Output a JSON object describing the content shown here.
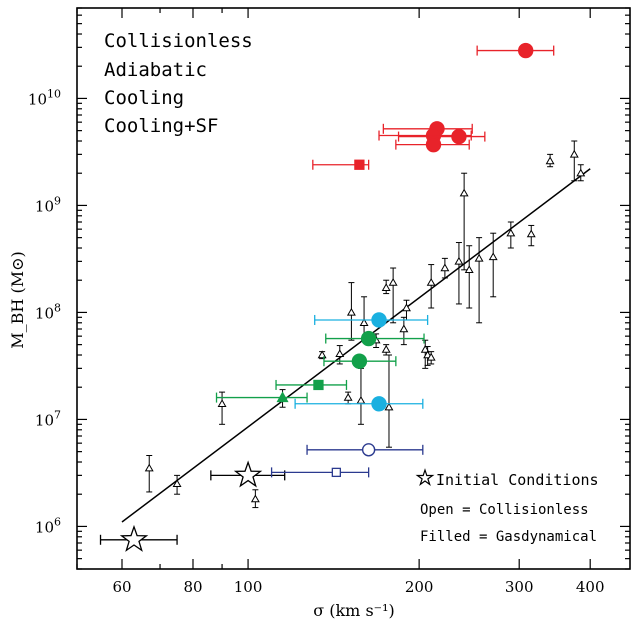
{
  "chart_data": {
    "type": "scatter",
    "xlabel": "σ (km s⁻¹)",
    "ylabel": "M_BH (M⊙)",
    "xscale": "log",
    "yscale": "log",
    "xlim": [
      50,
      470
    ],
    "ylim": [
      400000,
      70000000000
    ],
    "x_ticks": [
      {
        "v": 60,
        "label": "60"
      },
      {
        "v": 80,
        "label": "80"
      },
      {
        "v": 100,
        "label": "100"
      },
      {
        "v": 200,
        "label": "200"
      },
      {
        "v": 300,
        "label": "300"
      },
      {
        "v": 400,
        "label": "400"
      }
    ],
    "y_ticks": [
      {
        "v": 1000000,
        "base": "10",
        "exp": "6"
      },
      {
        "v": 10000000,
        "base": "10",
        "exp": "7"
      },
      {
        "v": 100000000,
        "base": "10",
        "exp": "8"
      },
      {
        "v": 1000000000,
        "base": "10",
        "exp": "9"
      },
      {
        "v": 10000000000,
        "base": "10",
        "exp": "10"
      }
    ],
    "legend": {
      "placement": "top-left",
      "entries": [
        {
          "label": "Collisionless",
          "color": "#2b3a8f"
        },
        {
          "label": "Adiabatic",
          "color": "#1ab0e0"
        },
        {
          "label": "Cooling",
          "color": "#e8232a"
        },
        {
          "label": "Cooling+SF",
          "color": "#12a04a"
        }
      ]
    },
    "annotations": {
      "initial": "Initial Conditions",
      "open": "Open = Collisionless",
      "filled": "Filled = Gasdynamical"
    },
    "fit_line": {
      "x": [
        60,
        400
      ],
      "y": [
        1100000,
        2200000000
      ]
    },
    "observed": [
      {
        "x": 67,
        "y": 3500000,
        "ylo": 2100000,
        "yhi": 4600000
      },
      {
        "x": 75,
        "y": 2500000,
        "ylo": 2000000,
        "yhi": 3000000
      },
      {
        "x": 90,
        "y": 14000000,
        "ylo": 9000000,
        "yhi": 18000000
      },
      {
        "x": 103,
        "y": 1800000,
        "ylo": 1500000,
        "yhi": 2200000
      },
      {
        "x": 115,
        "y": 16000000,
        "ylo": 13000000,
        "yhi": 19000000
      },
      {
        "x": 135,
        "y": 40000000,
        "ylo": 37000000,
        "yhi": 43000000
      },
      {
        "x": 145,
        "y": 41000000,
        "ylo": 33000000,
        "yhi": 49000000
      },
      {
        "x": 150,
        "y": 16000000,
        "ylo": 14000000,
        "yhi": 18000000
      },
      {
        "x": 152,
        "y": 100000000,
        "ylo": 55000000,
        "yhi": 190000000
      },
      {
        "x": 158,
        "y": 15000000,
        "ylo": 9000000,
        "yhi": 30000000
      },
      {
        "x": 160,
        "y": 80000000,
        "ylo": 55000000,
        "yhi": 140000000
      },
      {
        "x": 168,
        "y": 55000000,
        "ylo": 47000000,
        "yhi": 63000000
      },
      {
        "x": 175,
        "y": 45000000,
        "ylo": 40000000,
        "yhi": 50000000
      },
      {
        "x": 175,
        "y": 170000000,
        "ylo": 150000000,
        "yhi": 200000000
      },
      {
        "x": 177,
        "y": 13000000,
        "ylo": 5500000,
        "yhi": 40000000
      },
      {
        "x": 180,
        "y": 190000000,
        "ylo": 80000000,
        "yhi": 260000000
      },
      {
        "x": 188,
        "y": 70000000,
        "ylo": 50000000,
        "yhi": 90000000
      },
      {
        "x": 190,
        "y": 110000000,
        "ylo": 85000000,
        "yhi": 130000000
      },
      {
        "x": 205,
        "y": 45000000,
        "ylo": 30000000,
        "yhi": 55000000
      },
      {
        "x": 207,
        "y": 40000000,
        "ylo": 32000000,
        "yhi": 48000000
      },
      {
        "x": 210,
        "y": 190000000,
        "ylo": 110000000,
        "yhi": 280000000
      },
      {
        "x": 210,
        "y": 38000000,
        "ylo": 33000000,
        "yhi": 43000000
      },
      {
        "x": 222,
        "y": 260000000,
        "ylo": 210000000,
        "yhi": 320000000
      },
      {
        "x": 235,
        "y": 300000000,
        "ylo": 120000000,
        "yhi": 450000000
      },
      {
        "x": 240,
        "y": 1300000000,
        "ylo": 250000000,
        "yhi": 2000000000
      },
      {
        "x": 245,
        "y": 250000000,
        "ylo": 110000000,
        "yhi": 420000000
      },
      {
        "x": 255,
        "y": 320000000,
        "ylo": 80000000,
        "yhi": 500000000
      },
      {
        "x": 270,
        "y": 330000000,
        "ylo": 140000000,
        "yhi": 550000000
      },
      {
        "x": 290,
        "y": 550000000,
        "ylo": 400000000,
        "yhi": 700000000
      },
      {
        "x": 315,
        "y": 540000000,
        "ylo": 420000000,
        "yhi": 650000000
      },
      {
        "x": 340,
        "y": 2600000000,
        "ylo": 2300000000,
        "yhi": 3000000000
      },
      {
        "x": 375,
        "y": 3000000000,
        "ylo": 1700000000,
        "yhi": 4000000000
      },
      {
        "x": 385,
        "y": 2000000000,
        "ylo": 1700000000,
        "yhi": 2400000000
      }
    ],
    "initial_conditions": [
      {
        "x": 63,
        "y": 750000,
        "xlo": 55,
        "xhi": 75
      },
      {
        "x": 100,
        "y": 3000000,
        "xlo": 86,
        "xhi": 116
      }
    ],
    "simulations": [
      {
        "series": "Collisionless",
        "marker": "circle",
        "filled": false,
        "x": 163,
        "y": 5200000,
        "xlo": 127,
        "xhi": 203
      },
      {
        "series": "Collisionless",
        "marker": "square",
        "filled": false,
        "x": 143,
        "y": 3200000,
        "xlo": 110,
        "xhi": 163
      },
      {
        "series": "Adiabatic",
        "marker": "circle",
        "filled": true,
        "x": 170,
        "y": 85000000,
        "xlo": 131,
        "xhi": 207
      },
      {
        "series": "Adiabatic",
        "marker": "circle",
        "filled": true,
        "x": 170,
        "y": 14000000,
        "xlo": 121,
        "xhi": 203
      },
      {
        "series": "Cooling",
        "marker": "circle",
        "filled": true,
        "x": 308,
        "y": 28000000000,
        "xlo": 253,
        "xhi": 345
      },
      {
        "series": "Cooling",
        "marker": "circle",
        "filled": true,
        "x": 215,
        "y": 5200000000,
        "xlo": 173,
        "xhi": 248
      },
      {
        "series": "Cooling",
        "marker": "circle",
        "filled": true,
        "x": 212,
        "y": 4500000000,
        "xlo": 170,
        "xhi": 247
      },
      {
        "series": "Cooling",
        "marker": "circle",
        "filled": true,
        "x": 235,
        "y": 4400000000,
        "xlo": 184,
        "xhi": 261
      },
      {
        "series": "Cooling",
        "marker": "circle",
        "filled": true,
        "x": 212,
        "y": 3700000000,
        "xlo": 182,
        "xhi": 245
      },
      {
        "series": "Cooling",
        "marker": "square",
        "filled": true,
        "x": 157,
        "y": 2400000000,
        "xlo": 130,
        "xhi": 163
      },
      {
        "series": "Cooling+SF",
        "marker": "circle",
        "filled": true,
        "x": 163,
        "y": 57000000,
        "xlo": 137,
        "xhi": 204
      },
      {
        "series": "Cooling+SF",
        "marker": "circle",
        "filled": true,
        "x": 157,
        "y": 35000000,
        "xlo": 136,
        "xhi": 182
      },
      {
        "series": "Cooling+SF",
        "marker": "square",
        "filled": true,
        "x": 133,
        "y": 21000000,
        "xlo": 112,
        "xhi": 149
      },
      {
        "series": "Cooling+SF",
        "marker": "triangle",
        "filled": true,
        "x": 115,
        "y": 16000000,
        "xlo": 88,
        "xhi": 127
      }
    ]
  }
}
